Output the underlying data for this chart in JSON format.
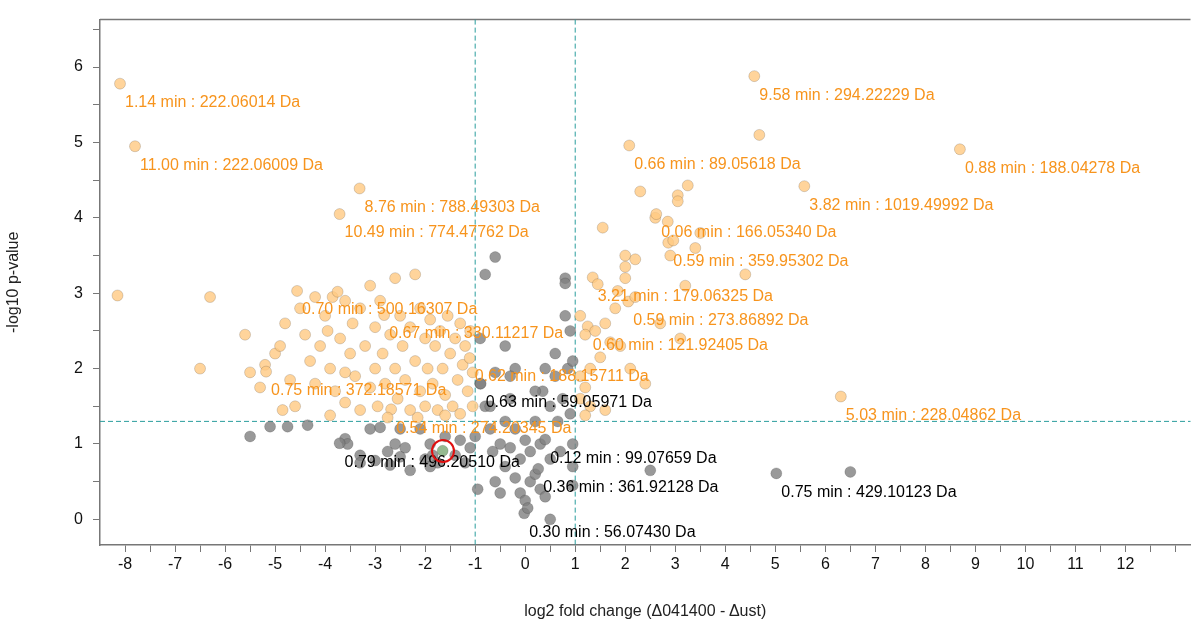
{
  "chart_data": {
    "type": "scatter",
    "xlabel": "log2 fold change (Δ041400 - Δust)",
    "ylabel": "-log10 p-value",
    "xlim": [
      -8.5,
      13.3
    ],
    "ylim": [
      -0.34,
      6.63
    ],
    "xticks": [
      -8,
      {
        "value": -7.5,
        "label": null
      },
      -7,
      {
        "value": -6.5,
        "label": null
      },
      -6,
      {
        "value": -5.5,
        "label": null
      },
      -5,
      {
        "value": -4.5,
        "label": null
      },
      -4,
      {
        "value": -3.5,
        "label": null
      },
      -3,
      {
        "value": -2.5,
        "label": null
      },
      -2,
      {
        "value": -1.5,
        "label": null
      },
      -1,
      {
        "value": -0.5,
        "label": null
      },
      0,
      {
        "value": 0.5,
        "label": null
      },
      1,
      {
        "value": 1.5,
        "label": null
      },
      2,
      {
        "value": 2.5,
        "label": null
      },
      3,
      {
        "value": 3.5,
        "label": null
      },
      4,
      {
        "value": 4.5,
        "label": null
      },
      5,
      {
        "value": 5.5,
        "label": null
      },
      6,
      {
        "value": 6.5,
        "label": null
      },
      7,
      {
        "value": 7.5,
        "label": null
      },
      8,
      {
        "value": 8.5,
        "label": null
      },
      9,
      {
        "value": 9.5,
        "label": null
      },
      10,
      {
        "value": 10.5,
        "label": null
      },
      11,
      {
        "value": 11.5,
        "label": null
      },
      12,
      {
        "value": 12.5,
        "label": null
      },
      {
        "value": 13,
        "label": null
      }
    ],
    "yticks": [
      0,
      {
        "value": 0.5,
        "label": null
      },
      1,
      {
        "value": 1.5,
        "label": null
      },
      2,
      {
        "value": 2.5,
        "label": null
      },
      3,
      {
        "value": 3.5,
        "label": null
      },
      4,
      {
        "value": 4.5,
        "label": null
      },
      5,
      {
        "value": 5.5,
        "label": null
      },
      6,
      {
        "value": 6.5,
        "label": null
      }
    ],
    "grid": false,
    "legend": false,
    "marker": "circle",
    "ref_lines": [
      {
        "axis": "x",
        "value": -1,
        "color": "#2a9d9d",
        "line_style": "dashed"
      },
      {
        "axis": "x",
        "value": 1,
        "color": "#2a9d9d",
        "line_style": "dashed"
      },
      {
        "axis": "y",
        "value": 1.3,
        "color": "#2a9d9d",
        "line_style": "dashed"
      }
    ],
    "series": [
      {
        "color": "#ffc982",
        "x": [
          -8.1,
          -7.8,
          -8.15,
          -6.3,
          -6.5,
          -5.6,
          -3.31,
          -3.71,
          4.58,
          4.68,
          2.08,
          8.69,
          5.58,
          6.31,
          3.25,
          2.3,
          3.05,
          3.05,
          1.55,
          2.6,
          2.85,
          3.5,
          4.4,
          2.62,
          2.86,
          2.96,
          3.4,
          3.2,
          2.9,
          2.0,
          2.0,
          2.0,
          2.2,
          1.35,
          1.45,
          1.85,
          2.06,
          1.8,
          2.2,
          3.1,
          2.7,
          1.25,
          1.1,
          1.2,
          1.4,
          1.6,
          1.7,
          1.5,
          1.3,
          1.1,
          1.9,
          2.1,
          2.4,
          1.2,
          1.1,
          1.3,
          1.6,
          1.2,
          -5.5,
          -5.2,
          -5.18,
          -5.0,
          -4.8,
          -4.9,
          -4.7,
          -4.6,
          -4.56,
          -4.4,
          -4.3,
          -4.2,
          -4.1,
          -4.0,
          -3.9,
          -3.85,
          -3.8,
          -3.75,
          -3.7,
          -3.6,
          -3.6,
          -3.5,
          -3.45,
          -3.4,
          -3.3,
          -3.3,
          -3.2,
          -3.1,
          -3.1,
          -3.0,
          -3.0,
          -2.95,
          -2.9,
          -2.85,
          -2.82,
          -2.8,
          -2.7,
          -2.68,
          -2.6,
          -2.6,
          -2.55,
          -2.5,
          -2.45,
          -2.4,
          -2.3,
          -2.3,
          -2.2,
          -2.2,
          -2.1,
          -2.1,
          -2.0,
          -2.0,
          -1.95,
          -1.9,
          -1.85,
          -1.8,
          -1.75,
          -1.7,
          -1.65,
          -1.6,
          -1.55,
          -1.5,
          -1.45,
          -1.4,
          -1.35,
          -1.3,
          -1.3,
          -1.25,
          -1.2,
          -1.15,
          -1.11,
          -1.1,
          -1.05,
          -1.05,
          -4.85,
          -3.9,
          -3.6,
          -2.75,
          -2.15,
          -1.6,
          -5.3,
          -4.5,
          -4.2,
          -3.95
        ],
        "values": [
          5.78,
          4.95,
          2.97,
          2.95,
          2.0,
          2.45,
          4.39,
          4.05,
          5.88,
          5.1,
          4.96,
          4.91,
          4.42,
          1.63,
          4.43,
          4.35,
          4.3,
          4.22,
          3.87,
          4.0,
          3.95,
          3.8,
          3.25,
          4.05,
          3.67,
          3.7,
          3.6,
          3.1,
          3.5,
          3.5,
          3.35,
          3.2,
          3.45,
          3.21,
          3.12,
          3.03,
          2.89,
          2.8,
          2.95,
          2.4,
          2.6,
          2.56,
          2.7,
          2.45,
          2.5,
          2.6,
          2.35,
          2.15,
          2.0,
          1.9,
          2.3,
          2.0,
          1.8,
          1.75,
          1.6,
          1.5,
          1.45,
          1.38,
          1.95,
          2.05,
          1.96,
          2.2,
          2.6,
          2.3,
          1.85,
          1.5,
          3.03,
          2.45,
          2.1,
          1.8,
          2.3,
          2.7,
          2.0,
          2.95,
          1.7,
          3.02,
          2.4,
          2.9,
          1.55,
          2.2,
          2.6,
          1.9,
          2.8,
          1.45,
          2.3,
          3.1,
          1.75,
          2.55,
          2.0,
          1.5,
          2.9,
          2.2,
          2.71,
          1.8,
          2.45,
          1.46,
          3.2,
          2.0,
          1.6,
          2.7,
          2.3,
          1.85,
          2.55,
          1.45,
          2.1,
          3.25,
          2.8,
          1.7,
          2.4,
          1.5,
          2.0,
          2.65,
          1.8,
          2.3,
          1.45,
          2.5,
          2.0,
          1.65,
          2.7,
          2.2,
          1.5,
          2.4,
          1.85,
          2.6,
          1.4,
          2.05,
          2.3,
          1.7,
          2.14,
          2.5,
          1.5,
          1.95,
          1.45,
          1.38,
          1.95,
          1.35,
          1.35,
          1.38,
          1.75,
          2.8,
          2.95,
          2.5
        ]
      },
      {
        "color": "#808080",
        "x": [
          -5.5,
          -5.1,
          -4.75,
          -4.35,
          -3.6,
          -3.55,
          -3.71,
          -3.3,
          -3.1,
          -2.9,
          -2.75,
          -2.6,
          -2.5,
          -2.4,
          -2.3,
          -2.1,
          -2.0,
          -1.9,
          -1.75,
          -1.6,
          -1.4,
          -1.3,
          -1.2,
          -1.1,
          -3.3,
          -3.0,
          -2.7,
          -1.9,
          -1.85,
          -2.5,
          -0.95,
          -1.0,
          -0.9,
          -0.89,
          -0.9,
          -0.8,
          -0.7,
          -0.65,
          -0.6,
          -0.5,
          -0.5,
          -0.4,
          -0.4,
          -0.3,
          -0.3,
          -0.2,
          -0.2,
          -0.1,
          -0.1,
          0.0,
          0.0,
          -0.02,
          0.05,
          0.1,
          0.1,
          0.2,
          0.2,
          0.3,
          0.3,
          0.35,
          0.4,
          0.4,
          0.26,
          0.5,
          0.5,
          0.6,
          0.6,
          0.65,
          0.7,
          0.75,
          0.8,
          0.8,
          0.8,
          0.85,
          0.9,
          0.9,
          0.95,
          0.95,
          0.95,
          0.95,
          -0.6,
          -0.8,
          -0.2,
          -0.4,
          -0.3,
          -0.7,
          -0.6,
          0.2,
          2.5,
          5.02,
          6.5,
          0.5,
          0.4
        ],
        "values": [
          1.1,
          1.23,
          1.23,
          1.25,
          1.07,
          1.0,
          1.01,
          0.85,
          1.2,
          1.22,
          0.9,
          1.0,
          1.2,
          0.95,
          0.65,
          1.2,
          0.8,
          1.0,
          0.75,
          1.1,
          0.85,
          1.05,
          0.75,
          0.95,
          0.75,
          0.78,
          0.72,
          0.7,
          0.85,
          0.83,
          0.4,
          1.1,
          1.8,
          1.8,
          2.4,
          1.5,
          1.2,
          0.9,
          0.5,
          1.0,
          0.35,
          1.3,
          0.7,
          1.6,
          0.95,
          0.55,
          1.2,
          0.8,
          0.35,
          0.25,
          1.05,
          0.08,
          0.15,
          0.5,
          0.9,
          1.3,
          0.6,
          0.4,
          1.0,
          1.7,
          2.0,
          1.06,
          0.67,
          1.5,
          0.8,
          1.9,
          2.2,
          1.3,
          0.9,
          1.6,
          3.2,
          3.13,
          2.7,
          2.0,
          1.4,
          2.5,
          0.45,
          0.7,
          1.0,
          2.1,
          3.48,
          3.25,
          2.0,
          2.3,
          1.9,
          1.5,
          1.95,
          1.7,
          0.65,
          0.61,
          0.63,
          0.0,
          0.3
        ]
      },
      {
        "color": "#7aa874",
        "x": [
          -1.65
        ],
        "values": [
          0.91
        ]
      }
    ],
    "annotations": [
      {
        "text": "1.14 min : 222.06014 Da",
        "x": -8.1,
        "y": 5.78
      },
      {
        "text": "11.00 min : 222.06009 Da",
        "x": -7.8,
        "y": 4.95
      },
      {
        "text": "8.76 min : 788.49303 Da",
        "x": -3.31,
        "y": 4.39
      },
      {
        "text": "10.49 min : 774.47762 Da",
        "x": -3.71,
        "y": 4.05
      },
      {
        "text": "9.58 min : 294.22229 Da",
        "x": 4.58,
        "y": 5.88
      },
      {
        "text": "0.66 min : 89.05618 Da",
        "x": 2.08,
        "y": 4.96
      },
      {
        "text": "0.88 min : 188.04278 Da",
        "x": 8.69,
        "y": 4.91
      },
      {
        "text": "3.82 min : 1019.49992 Da",
        "x": 5.58,
        "y": 4.42
      },
      {
        "text": "0.06 min : 166.05340 Da",
        "x": 2.62,
        "y": 4.05
      },
      {
        "text": "0.59 min : 359.95302 Da",
        "x": 2.86,
        "y": 3.67
      },
      {
        "text": "3.21 min : 179.06325 Da",
        "x": 1.35,
        "y": 3.21
      },
      {
        "text": "0.59 min : 273.86892 Da",
        "x": 2.06,
        "y": 2.89
      },
      {
        "text": "0.60 min : 121.92405 Da",
        "x": 1.25,
        "y": 2.56
      },
      {
        "text": "0.70 min : 500.16307 Da",
        "x": -4.56,
        "y": 3.03
      },
      {
        "text": "0.67 min : 330.11217 Da",
        "x": -2.82,
        "y": 2.71
      },
      {
        "text": "0.75 min : 372.18571 Da",
        "x": -5.18,
        "y": 1.96
      },
      {
        "text": "0.62 min : 188.15711 Da",
        "x": -1.11,
        "y": 2.14
      },
      {
        "text": "0.54 min : 274.20345 Da",
        "x": -2.68,
        "y": 1.46
      },
      {
        "text": "0.63 min : 59.05971 Da",
        "x": -0.89,
        "y": 1.8
      },
      {
        "text": "0.79 min : 496.20510 Da",
        "x": -3.71,
        "y": 1.01
      },
      {
        "text": "0.12 min : 99.07659 Da",
        "x": 0.4,
        "y": 1.06
      },
      {
        "text": "0.36 min : 361.92128 Da",
        "x": 0.26,
        "y": 0.67
      },
      {
        "text": "0.30 min : 56.07430 Da",
        "x": -0.02,
        "y": 0.08
      },
      {
        "text": "0.75 min : 429.10123 Da",
        "x": 5.02,
        "y": 0.61
      },
      {
        "text": "5.03 min : 228.04862 Da",
        "x": 6.31,
        "y": 1.63
      }
    ]
  }
}
